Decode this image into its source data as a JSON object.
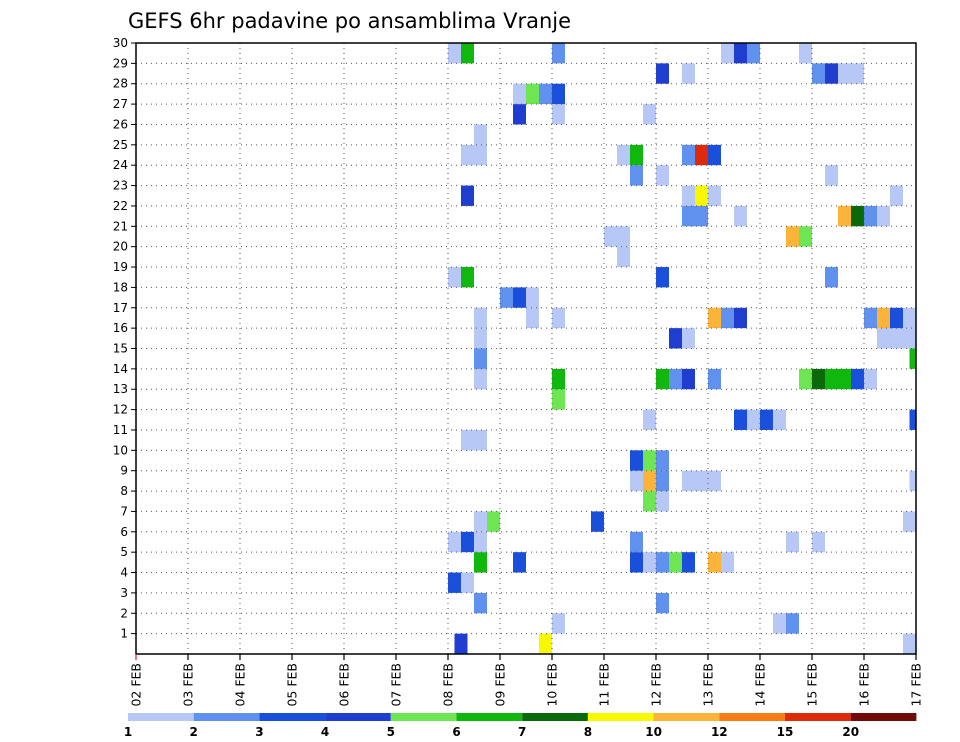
{
  "chart_data": {
    "type": "heatmap",
    "title": "GEFS 6hr padavine po ansamblima Vranje",
    "xlabel": "",
    "ylabel": "",
    "x_tick_labels": [
      "02 FEB",
      "03 FEB",
      "04 FEB",
      "05 FEB",
      "06 FEB",
      "07 FEB",
      "08 FEB",
      "09 FEB",
      "10 FEB",
      "11 FEB",
      "12 FEB",
      "13 FEB",
      "14 FEB",
      "15 FEB",
      "16 FEB",
      "17 FEB"
    ],
    "y_tick_labels": [
      "1",
      "2",
      "3",
      "4",
      "5",
      "6",
      "7",
      "8",
      "9",
      "10",
      "11",
      "12",
      "13",
      "14",
      "15",
      "16",
      "17",
      "18",
      "19",
      "20",
      "21",
      "22",
      "23",
      "24",
      "25",
      "26",
      "27",
      "28",
      "29",
      "30"
    ],
    "x_range_steps": [
      0,
      60
    ],
    "steps_per_day": 4,
    "y_range": [
      0,
      30
    ],
    "grid": true,
    "legend_position": "bottom",
    "legend": {
      "levels": [
        "1",
        "2",
        "3",
        "4",
        "5",
        "6",
        "7",
        "8",
        "10",
        "12",
        "15",
        "20"
      ],
      "colors": [
        "#b7c8f6",
        "#6091ee",
        "#1a4fdc",
        "#1f3ed0",
        "#6ee654",
        "#10b80e",
        "#0a6a0a",
        "#f8f800",
        "#fbb43a",
        "#f77d14",
        "#dd2a0a",
        "#730a0a"
      ]
    },
    "series_cells": [
      {
        "member": 0,
        "cells": [
          [
            24.5,
            3
          ],
          [
            31,
            7
          ],
          [
            59,
            0
          ]
        ]
      },
      {
        "member": 1,
        "cells": [
          [
            32,
            0
          ],
          [
            49,
            0
          ],
          [
            50,
            1
          ]
        ]
      },
      {
        "member": 2,
        "cells": [
          [
            26,
            1
          ],
          [
            40,
            1
          ]
        ]
      },
      {
        "member": 3,
        "cells": [
          [
            24,
            2
          ],
          [
            25,
            0
          ]
        ]
      },
      {
        "member": 4,
        "cells": [
          [
            26,
            5
          ],
          [
            29,
            2
          ],
          [
            38,
            2
          ],
          [
            39,
            0
          ],
          [
            40,
            1
          ],
          [
            41,
            4
          ],
          [
            42,
            2
          ],
          [
            44,
            8
          ],
          [
            45,
            0
          ]
        ]
      },
      {
        "member": 5,
        "cells": [
          [
            24,
            0
          ],
          [
            25,
            2
          ],
          [
            26,
            0
          ],
          [
            38,
            1
          ],
          [
            50,
            0
          ],
          [
            52,
            0
          ]
        ]
      },
      {
        "member": 6,
        "cells": [
          [
            26,
            0
          ],
          [
            27,
            4
          ],
          [
            35,
            2
          ],
          [
            59,
            0
          ]
        ]
      },
      {
        "member": 7,
        "cells": [
          [
            39,
            4
          ],
          [
            40,
            0
          ]
        ]
      },
      {
        "member": 8,
        "cells": [
          [
            38,
            0
          ],
          [
            39,
            8
          ],
          [
            40,
            1
          ],
          [
            42,
            0
          ],
          [
            43,
            0
          ],
          [
            44,
            0
          ],
          [
            59.5,
            0
          ]
        ]
      },
      {
        "member": 9,
        "cells": [
          [
            38,
            2
          ],
          [
            39,
            4
          ],
          [
            40,
            1
          ]
        ]
      },
      {
        "member": 10,
        "cells": [
          [
            25,
            0
          ],
          [
            26,
            0
          ]
        ]
      },
      {
        "member": 11,
        "cells": [
          [
            39,
            0
          ],
          [
            46,
            2
          ],
          [
            47,
            0
          ],
          [
            48,
            2
          ],
          [
            49,
            0
          ],
          [
            59.5,
            2
          ]
        ]
      },
      {
        "member": 12,
        "cells": [
          [
            32,
            4
          ]
        ]
      },
      {
        "member": 13,
        "cells": [
          [
            26,
            0
          ],
          [
            32,
            5
          ],
          [
            40,
            5
          ],
          [
            41,
            1
          ],
          [
            42,
            3
          ],
          [
            44,
            1
          ],
          [
            51,
            4
          ],
          [
            52,
            6
          ],
          [
            53,
            5
          ],
          [
            54,
            5
          ],
          [
            55,
            2
          ],
          [
            56,
            0
          ]
        ]
      },
      {
        "member": 14,
        "cells": [
          [
            26,
            1
          ],
          [
            59.5,
            5
          ]
        ]
      },
      {
        "member": 15,
        "cells": [
          [
            26,
            0
          ],
          [
            41,
            3
          ],
          [
            42,
            0
          ],
          [
            57,
            0
          ],
          [
            58,
            0
          ],
          [
            59,
            0
          ]
        ]
      },
      {
        "member": 16,
        "cells": [
          [
            30,
            0
          ],
          [
            32,
            0
          ],
          [
            26,
            0
          ],
          [
            44,
            8
          ],
          [
            45,
            1
          ],
          [
            46,
            3
          ],
          [
            56,
            1
          ],
          [
            57,
            8
          ],
          [
            58,
            2
          ],
          [
            59,
            0
          ]
        ]
      },
      {
        "member": 17,
        "cells": [
          [
            28,
            1
          ],
          [
            29,
            2
          ],
          [
            30,
            0
          ]
        ]
      },
      {
        "member": 18,
        "cells": [
          [
            24,
            0
          ],
          [
            25,
            5
          ],
          [
            40,
            2
          ],
          [
            53,
            1
          ]
        ]
      },
      {
        "member": 19,
        "cells": [
          [
            37,
            0
          ]
        ]
      },
      {
        "member": 20,
        "cells": [
          [
            36,
            0
          ],
          [
            37,
            0
          ],
          [
            50,
            8
          ],
          [
            51,
            4
          ]
        ]
      },
      {
        "member": 21,
        "cells": [
          [
            42,
            1
          ],
          [
            43,
            1
          ],
          [
            46,
            0
          ],
          [
            54,
            8
          ],
          [
            55,
            6
          ],
          [
            56,
            1
          ],
          [
            57,
            0
          ]
        ]
      },
      {
        "member": 22,
        "cells": [
          [
            25,
            3
          ],
          [
            42,
            0
          ],
          [
            43,
            7
          ],
          [
            44,
            0
          ],
          [
            58,
            0
          ]
        ]
      },
      {
        "member": 23,
        "cells": [
          [
            38,
            1
          ],
          [
            40,
            0
          ],
          [
            53,
            0
          ]
        ]
      },
      {
        "member": 24,
        "cells": [
          [
            25,
            0
          ],
          [
            26,
            0
          ],
          [
            37,
            0
          ],
          [
            38,
            5
          ],
          [
            42,
            1
          ],
          [
            43,
            10
          ],
          [
            44,
            2
          ]
        ]
      },
      {
        "member": 25,
        "cells": [
          [
            26,
            0
          ]
        ]
      },
      {
        "member": 26,
        "cells": [
          [
            29,
            3
          ],
          [
            32,
            0
          ],
          [
            39,
            0
          ]
        ]
      },
      {
        "member": 27,
        "cells": [
          [
            29,
            0
          ],
          [
            30,
            4
          ],
          [
            31,
            1
          ],
          [
            32,
            2
          ]
        ]
      },
      {
        "member": 28,
        "cells": [
          [
            40,
            3
          ],
          [
            42,
            0
          ],
          [
            52,
            1
          ],
          [
            53,
            3
          ],
          [
            54,
            0
          ],
          [
            55,
            0
          ]
        ]
      },
      {
        "member": 29,
        "cells": [
          [
            24,
            0
          ],
          [
            25,
            5
          ],
          [
            32,
            1
          ],
          [
            45,
            0
          ],
          [
            46,
            3
          ],
          [
            47,
            1
          ],
          [
            51,
            0
          ]
        ]
      }
    ]
  }
}
